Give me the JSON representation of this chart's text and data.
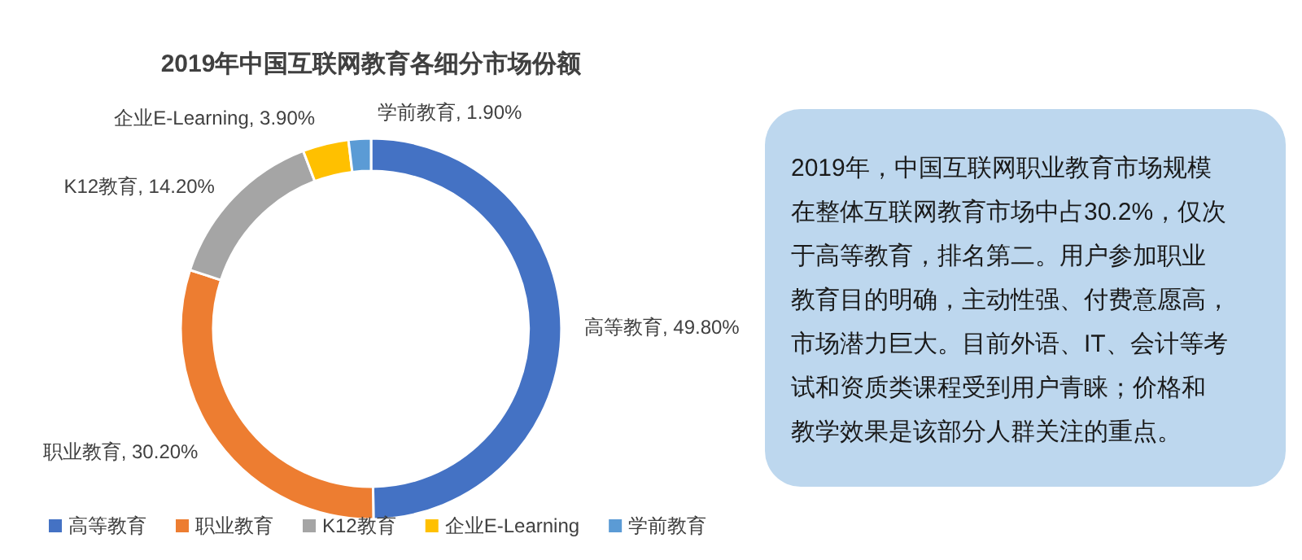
{
  "chart_data": [
    {
      "type": "donut",
      "title": "2019年中国互联网教育各细分市场份额",
      "categories": [
        "高等教育",
        "职业教育",
        "K12教育",
        "企业E-Learning",
        "学前教育"
      ],
      "values": [
        49.8,
        30.2,
        14.2,
        3.9,
        1.9
      ],
      "colors": [
        "#4472c4",
        "#ed7d31",
        "#a5a5a5",
        "#ffc000",
        "#5b9bd5"
      ],
      "value_labels": [
        ", 49.80%",
        ", 30.20%",
        ", 14.20%",
        ", 3.90%",
        ", 1.90%"
      ],
      "legend": "bottom"
    },
    {
      "type": "other",
      "annotations": [
        "2019年，中国互联网职业教育市场规模",
        "在整体互联网教育市场中占30.2%，仅次",
        "于高等教育，排名第二。用户参加职业",
        "教育目的明确，主动性强、付费意愿高，",
        "市场潜力巨大。目前外语、IT、会计等考",
        "试和资质类课程受到用户青睐；价格和",
        "教学效果是该部分人群关注的重点。"
      ]
    }
  ]
}
